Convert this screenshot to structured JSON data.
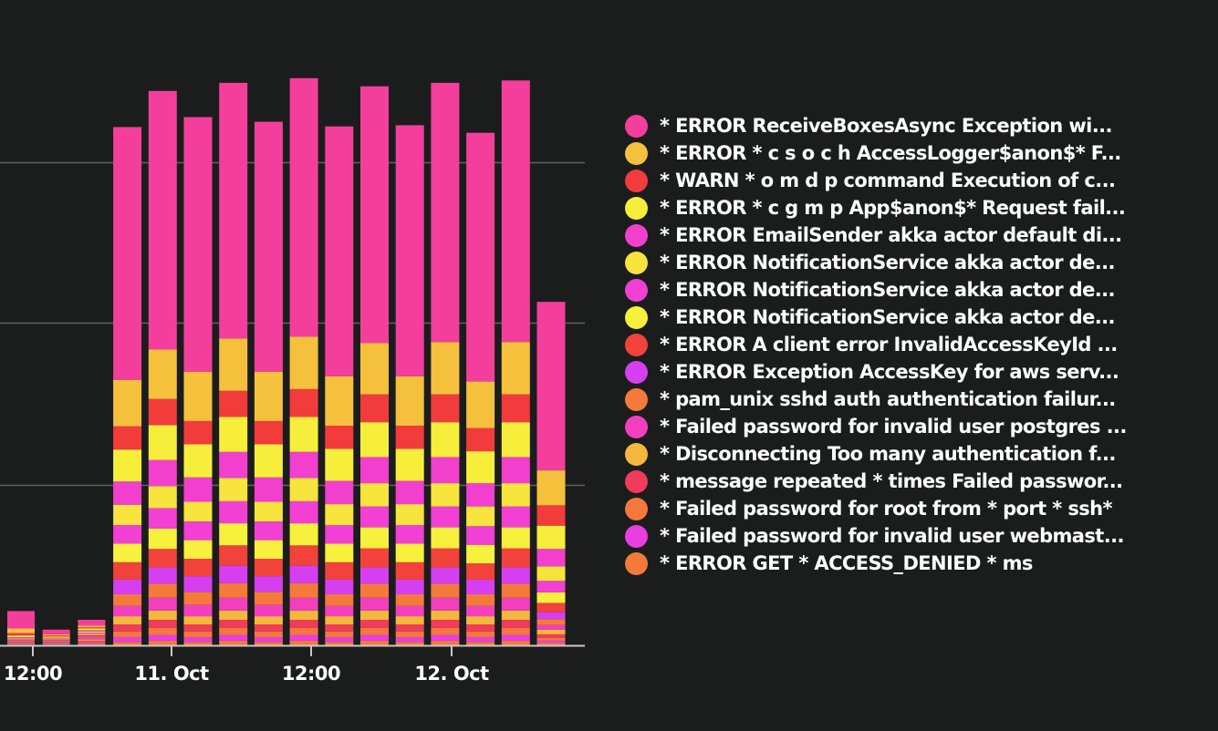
{
  "chart_data": {
    "type": "bar",
    "stacked": true,
    "grid": true,
    "legend_position": "right",
    "x_tick_labels": [
      "12:00",
      "11. Oct",
      "12:00",
      "12. Oct"
    ],
    "y_tick_labels": [],
    "bars": [
      [
        30,
        8,
        4,
        3,
        2,
        1,
        1,
        1,
        1,
        1,
        1,
        1,
        1,
        1,
        1,
        1,
        1
      ],
      [
        8,
        2,
        2,
        2,
        1,
        1,
        1,
        1,
        1,
        1,
        1,
        1,
        1,
        1,
        1,
        1,
        1
      ],
      [
        10,
        3,
        2,
        3,
        2,
        2,
        2,
        2,
        2,
        2,
        2,
        2,
        2,
        2,
        2,
        2,
        2
      ],
      [
        435,
        80,
        40,
        55,
        40,
        35,
        32,
        32,
        30,
        25,
        20,
        18,
        14,
        12,
        10,
        8,
        6
      ],
      [
        445,
        85,
        45,
        60,
        45,
        38,
        35,
        35,
        32,
        28,
        24,
        22,
        16,
        14,
        12,
        10,
        8
      ],
      [
        438,
        85,
        40,
        57,
        42,
        34,
        32,
        32,
        30,
        27,
        22,
        20,
        14,
        12,
        10,
        8,
        6
      ],
      [
        440,
        90,
        45,
        60,
        45,
        40,
        38,
        38,
        35,
        30,
        25,
        22,
        16,
        14,
        12,
        10,
        8
      ],
      [
        430,
        85,
        40,
        57,
        42,
        34,
        32,
        32,
        30,
        27,
        22,
        20,
        14,
        12,
        10,
        8,
        6
      ],
      [
        445,
        90,
        48,
        60,
        45,
        40,
        38,
        38,
        35,
        30,
        25,
        22,
        16,
        14,
        12,
        10,
        8
      ],
      [
        430,
        85,
        40,
        55,
        40,
        36,
        32,
        32,
        30,
        25,
        20,
        18,
        14,
        12,
        10,
        8,
        6
      ],
      [
        442,
        88,
        48,
        60,
        45,
        40,
        36,
        36,
        33,
        28,
        24,
        22,
        16,
        14,
        12,
        10,
        8
      ],
      [
        432,
        85,
        40,
        55,
        40,
        36,
        32,
        32,
        30,
        25,
        20,
        18,
        14,
        12,
        10,
        8,
        6
      ],
      [
        446,
        90,
        48,
        60,
        45,
        40,
        36,
        36,
        33,
        28,
        24,
        22,
        16,
        14,
        12,
        10,
        8
      ],
      [
        428,
        80,
        40,
        55,
        40,
        34,
        32,
        32,
        28,
        25,
        20,
        18,
        14,
        12,
        10,
        8,
        6
      ],
      [
        450,
        90,
        48,
        60,
        45,
        40,
        36,
        36,
        33,
        28,
        24,
        22,
        16,
        14,
        12,
        10,
        8
      ],
      [
        290,
        60,
        35,
        40,
        30,
        25,
        20,
        18,
        16,
        12,
        10,
        8,
        8,
        6,
        5,
        4,
        4
      ]
    ],
    "series": [
      {
        "name": "* ERROR ReceiveBoxesAsync Exception wi...",
        "color": "#f43e9c"
      },
      {
        "name": "* ERROR * c s o c h AccessLogger$anon$* F...",
        "color": "#f5c13d"
      },
      {
        "name": "* WARN * o m d p command Execution of c...",
        "color": "#f23c3c"
      },
      {
        "name": "* ERROR * c g m p App$anon$* Request fail...",
        "color": "#f7ee3c"
      },
      {
        "name": "* ERROR EmailSender akka actor default di...",
        "color": "#f23fcd"
      },
      {
        "name": "* ERROR NotificationService akka actor de...",
        "color": "#f7e43c"
      },
      {
        "name": "* ERROR NotificationService akka actor de...",
        "color": "#f23fd4"
      },
      {
        "name": "* ERROR NotificationService akka actor de...",
        "color": "#f7f03c"
      },
      {
        "name": "* ERROR A client error InvalidAccessKeyId ...",
        "color": "#f2423c"
      },
      {
        "name": "* ERROR Exception AccessKey for aws serv...",
        "color": "#d63ff0"
      },
      {
        "name": "* pam_unix sshd auth authentication failur...",
        "color": "#f47a3c"
      },
      {
        "name": "* Failed password for invalid user postgres ...",
        "color": "#f23fbe"
      },
      {
        "name": "* Disconnecting Too many authentication f...",
        "color": "#f5b83d"
      },
      {
        "name": "* message repeated * times Failed passwor...",
        "color": "#f03c5a"
      },
      {
        "name": "* Failed password for root from * port * ssh*",
        "color": "#f4783c"
      },
      {
        "name": "* Failed password for invalid user webmast...",
        "color": "#e93fe0"
      },
      {
        "name": "* ERROR GET * ACCESS_DENIED * ms",
        "color": "#f47a3c"
      }
    ]
  }
}
